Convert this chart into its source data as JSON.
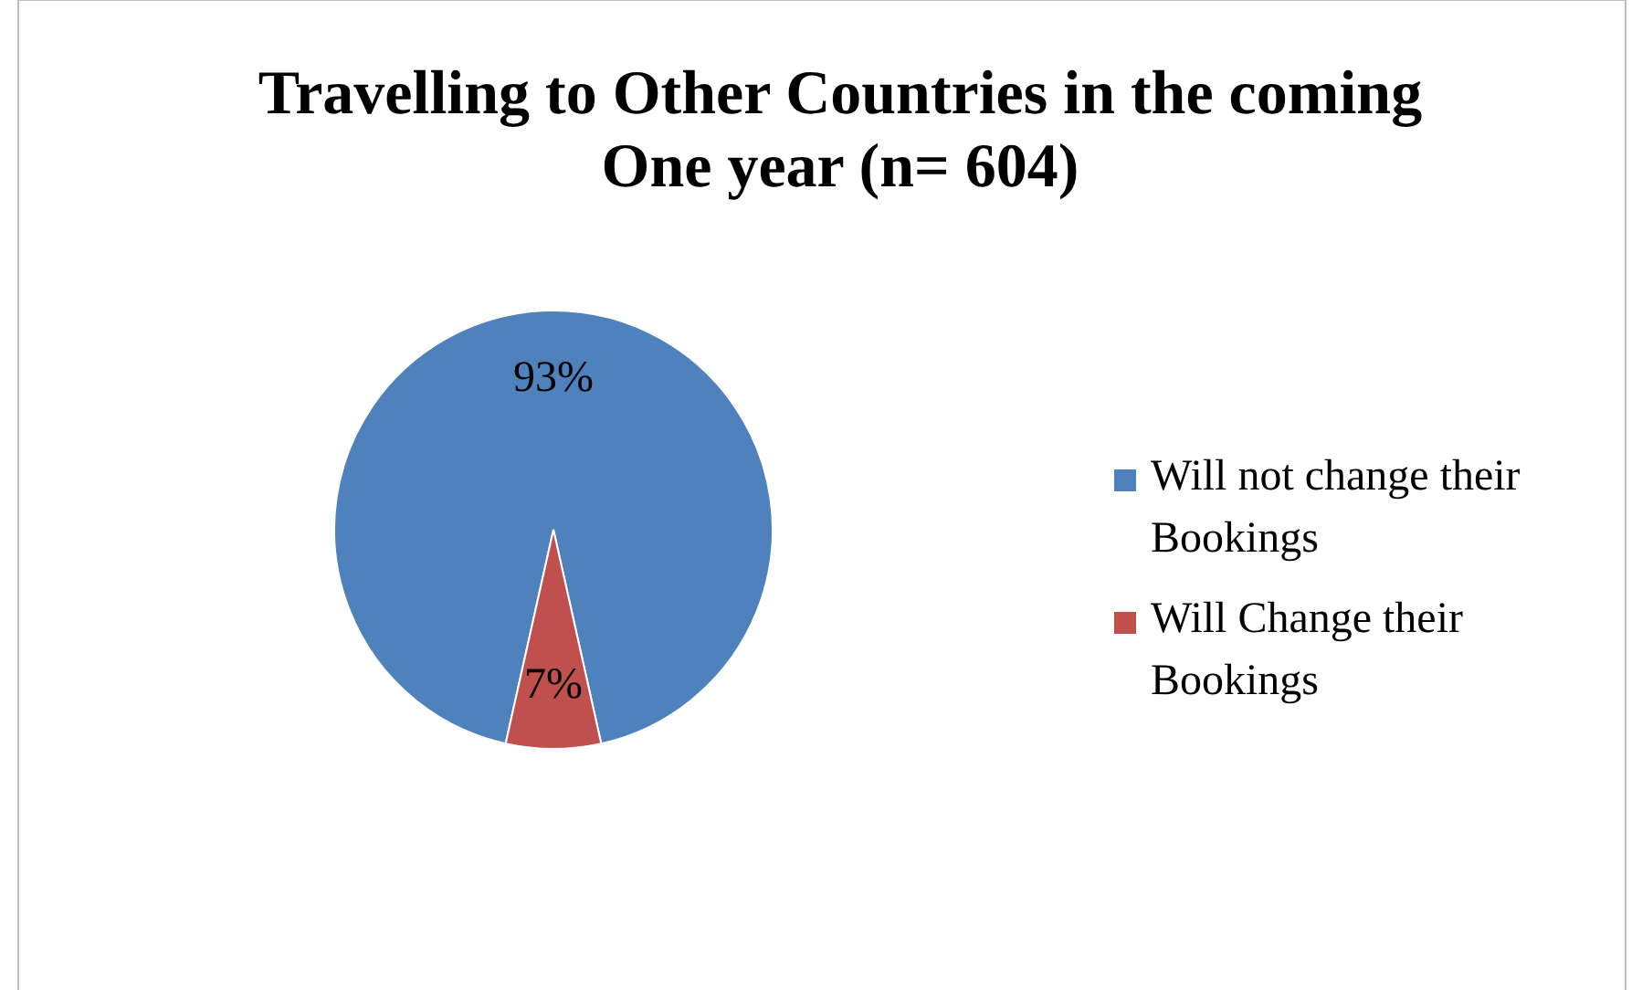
{
  "chart_data": {
    "type": "pie",
    "title": "Travelling to Other Countries in the coming One year (n= 604)",
    "categories": [
      "Will not change their Bookings",
      "Will Change their Bookings"
    ],
    "values": [
      93,
      7
    ],
    "colors": [
      "#4f81bd",
      "#c0504d"
    ],
    "value_labels": [
      "93%",
      "7%"
    ],
    "legend": "right"
  }
}
